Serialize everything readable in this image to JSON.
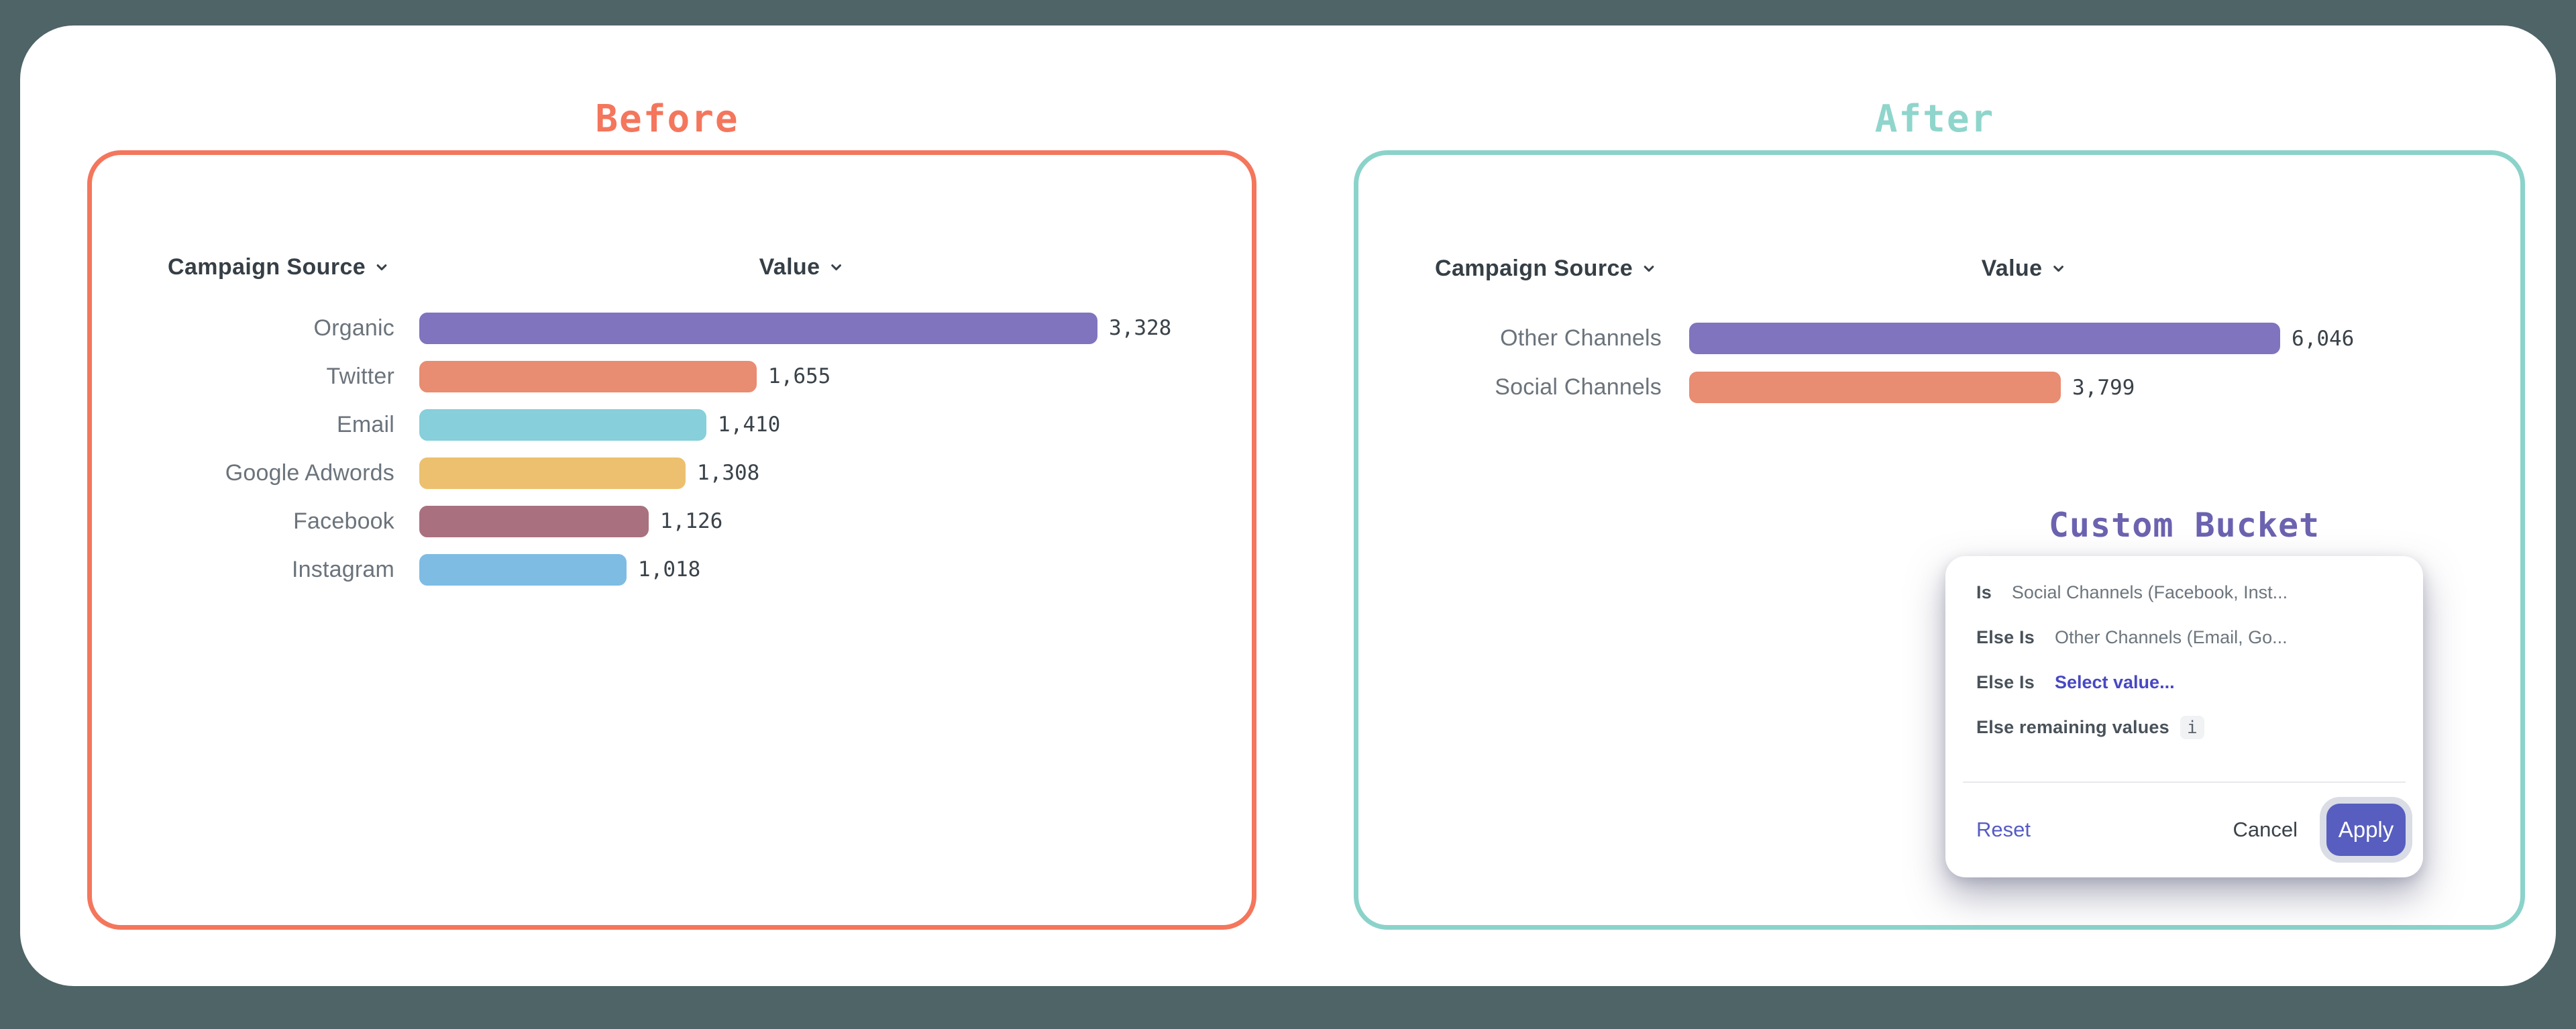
{
  "panels": {
    "before": {
      "title": "Before",
      "accent": "#F4765C"
    },
    "after": {
      "title": "After",
      "accent": "#8BD3CA"
    }
  },
  "chart_data": [
    {
      "type": "bar",
      "orientation": "horizontal",
      "title": "Before",
      "columns": [
        "Campaign Source",
        "Value"
      ],
      "header_icon": "chevron-down-icon",
      "categories": [
        "Organic",
        "Twitter",
        "Email",
        "Google Adwords",
        "Facebook",
        "Instagram"
      ],
      "values": [
        3328,
        1655,
        1410,
        1308,
        1126,
        1018
      ],
      "value_labels": [
        "3,328",
        "1,655",
        "1,410",
        "1,308",
        "1,126",
        "1,018"
      ],
      "bar_colors": [
        "#8074BE",
        "#E88C72",
        "#87CFDA",
        "#ECC06E",
        "#A97180",
        "#7EBCE4"
      ],
      "xlim": [
        0,
        3328
      ],
      "grid": false,
      "legend": "none"
    },
    {
      "type": "bar",
      "orientation": "horizontal",
      "title": "After",
      "columns": [
        "Campaign Source",
        "Value"
      ],
      "header_icon": "chevron-down-icon",
      "categories": [
        "Other Channels",
        "Social Channels"
      ],
      "values": [
        6046,
        3799
      ],
      "value_labels": [
        "6,046",
        "3,799"
      ],
      "bar_colors": [
        "#8074BE",
        "#E88C72"
      ],
      "xlim": [
        0,
        6046
      ],
      "grid": false,
      "legend": "none"
    }
  ],
  "popup": {
    "title": "Custom Bucket",
    "title_color": "#6B63B0",
    "rules": [
      {
        "label": "Is",
        "value": "Social Channels (Facebook, Inst..."
      },
      {
        "label": "Else Is",
        "value": "Other Channels (Email, Go..."
      },
      {
        "label": "Else Is",
        "value": "Select value..."
      },
      {
        "label": "Else remaining values",
        "value": ""
      }
    ],
    "info_icon": "i",
    "footer": {
      "reset": "Reset",
      "cancel": "Cancel",
      "apply": "Apply"
    },
    "apply_color": "#575EC0"
  }
}
